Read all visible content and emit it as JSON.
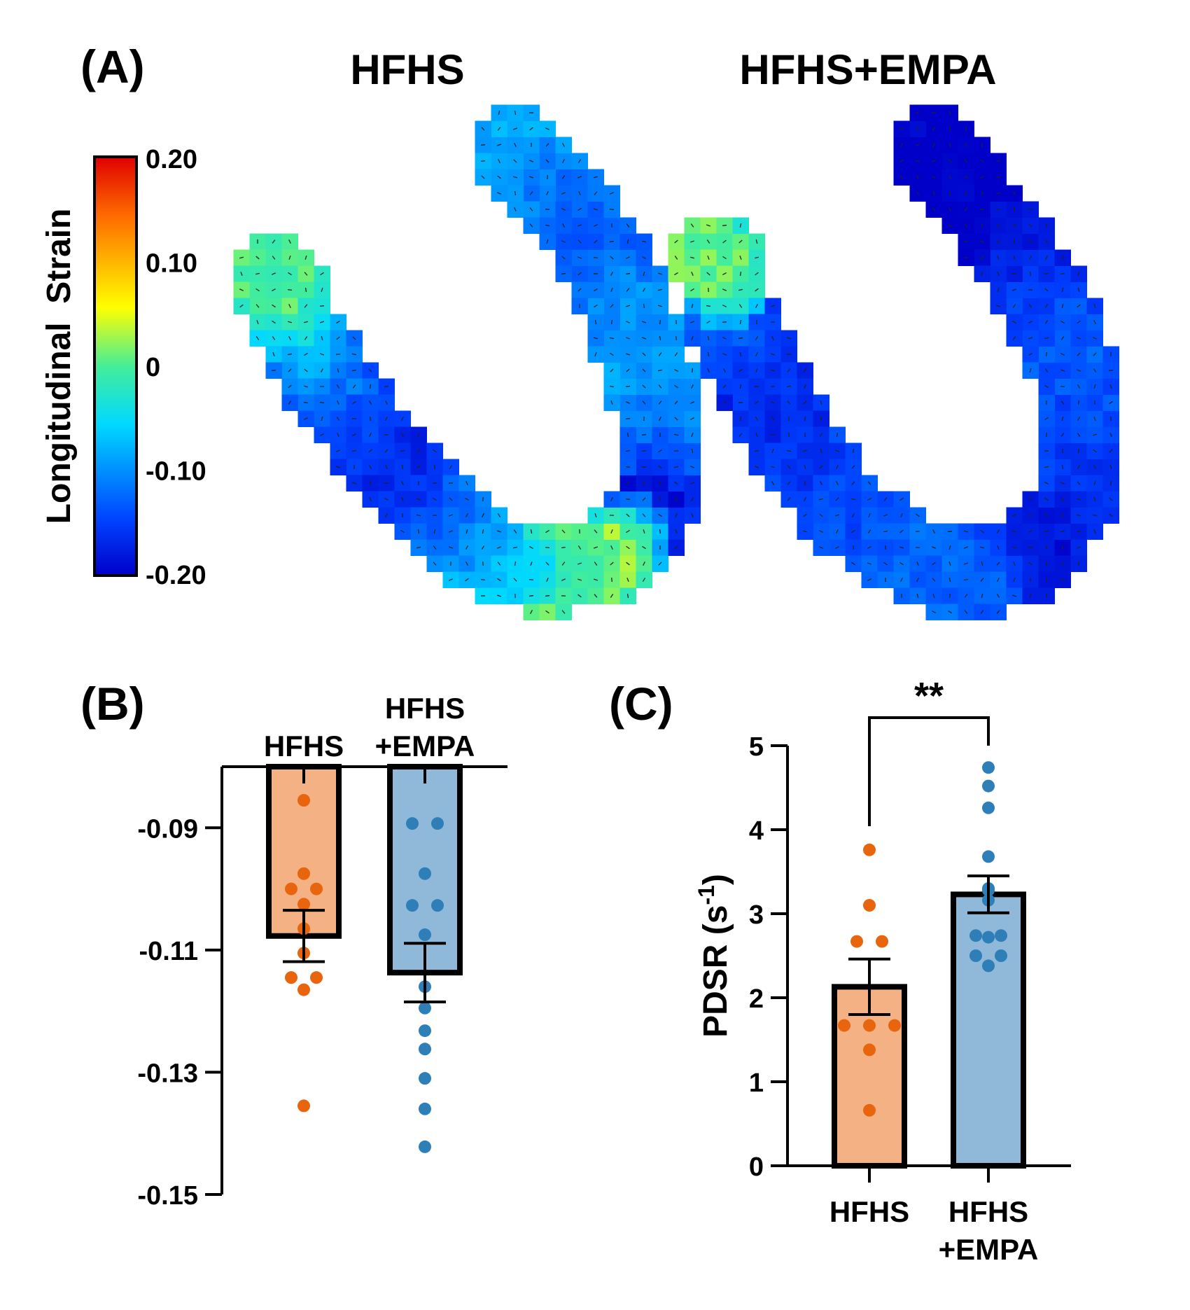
{
  "panel_a": {
    "label": "(A)",
    "groups": [
      "HFHS",
      "HFHS+EMPA"
    ],
    "colorbar": {
      "label": "Longitudinal  Strain",
      "min": -0.2,
      "max": 0.2,
      "ticks": [
        {
          "value": 0.2,
          "label": "0.20"
        },
        {
          "value": 0.1,
          "label": "0.10"
        },
        {
          "value": 0.0,
          "label": "0"
        },
        {
          "value": -0.1,
          "label": "-0.10"
        },
        {
          "value": -0.2,
          "label": "-0.20"
        }
      ],
      "colormap": "jet"
    },
    "strain_maps": [
      {
        "group": "HFHS",
        "segments": [
          0.0,
          -0.07,
          -0.12,
          -0.15,
          -0.17,
          -0.13,
          -0.09,
          -0.05,
          0.0,
          0.03,
          -0.19,
          -0.13,
          -0.1,
          -0.09,
          -0.1,
          -0.13,
          -0.12,
          -0.1,
          -0.08
        ]
      },
      {
        "group": "HFHS+EMPA",
        "segments": [
          0.01,
          -0.14,
          -0.16,
          -0.17,
          -0.15,
          -0.14,
          -0.13,
          -0.12,
          -0.13,
          -0.19,
          -0.16,
          -0.15,
          -0.14,
          -0.13,
          -0.15,
          -0.18,
          -0.2,
          -0.21,
          -0.2
        ]
      }
    ]
  },
  "panel_b": {
    "label": "(B)",
    "chart_data": {
      "type": "bar",
      "categories": [
        "HFHS",
        "HFHS\n+EMPA"
      ],
      "ylim": [
        -0.15,
        -0.08
      ],
      "yticks": [
        -0.09,
        -0.11,
        -0.13,
        -0.15
      ],
      "ytick_labels": [
        "-0.09",
        "-0.11",
        "-0.13",
        "-0.15"
      ],
      "bar_baseline": -0.08,
      "bars": [
        {
          "mean": -0.1077,
          "sem": 0.0042,
          "points": [
            -0.0855,
            -0.0975,
            -0.1,
            -0.1,
            -0.1025,
            -0.1065,
            -0.1105,
            -0.1145,
            -0.1145,
            -0.1165,
            -0.1355
          ]
        },
        {
          "mean": -0.1137,
          "sem": 0.0048,
          "points": [
            -0.0893,
            -0.0893,
            -0.0975,
            -0.1027,
            -0.1027,
            -0.1075,
            -0.116,
            -0.1195,
            -0.1232,
            -0.1262,
            -0.131,
            -0.136,
            -0.1422
          ]
        }
      ],
      "colors": {
        "HFHS": "#f4b183",
        "HFHS+EMPA": "#8fb8d9",
        "HFHS_points": "#e8650e",
        "HFHS+EMPA_points": "#2e7fb8"
      }
    }
  },
  "panel_c": {
    "label": "(C)",
    "chart_data": {
      "type": "bar",
      "categories": [
        "HFHS",
        "HFHS\n+EMPA"
      ],
      "ylabel": "PDSR (s",
      "ylabel_sup": "-1",
      "ylabel_close": ")",
      "ylim": [
        0,
        5
      ],
      "yticks": [
        0,
        1,
        2,
        3,
        4,
        5
      ],
      "ytick_labels": [
        "0",
        "1",
        "2",
        "3",
        "4",
        "5"
      ],
      "bars": [
        {
          "mean": 2.13,
          "sem": 0.33,
          "points": [
            3.76,
            3.1,
            2.67,
            2.67,
            1.67,
            1.67,
            1.67,
            1.38,
            0.66
          ]
        },
        {
          "mean": 3.23,
          "sem": 0.22,
          "points": [
            4.74,
            4.52,
            4.26,
            3.68,
            3.3,
            3.28,
            3.16,
            2.74,
            2.74,
            2.72,
            2.5,
            2.5,
            2.38
          ]
        }
      ],
      "significance": {
        "pair": [
          0,
          1
        ],
        "label": "**"
      }
    }
  }
}
